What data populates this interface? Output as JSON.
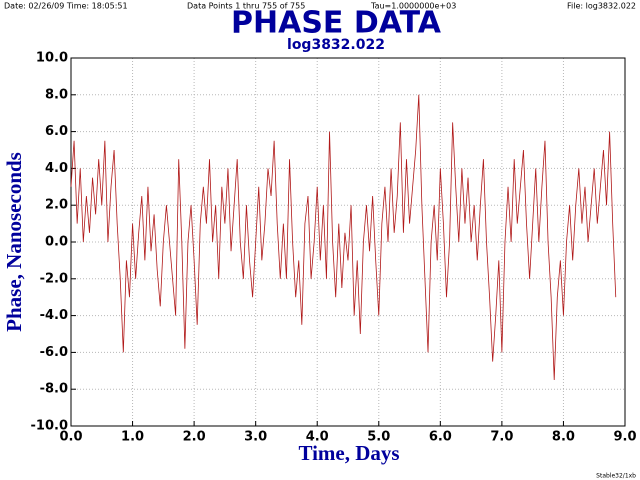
{
  "chart_data": {
    "type": "line",
    "header_date": "Date: 02/26/09  Time: 18:05:51",
    "header_points": "Data Points 1 thru 755 of 755",
    "header_tau": "Tau=1.0000000e+03",
    "header_file": "File: log3832.022",
    "title": "PHASE DATA",
    "subtitle": "log3832.022",
    "x_label": "Time,  Days",
    "y_label": "Phase,  Nanoseconds",
    "footer": "Stable32/1xb",
    "grid": true,
    "xlim": [
      0,
      9
    ],
    "ylim": [
      -10,
      10
    ],
    "xticks": [
      {
        "value": 0,
        "label": "0.0"
      },
      {
        "value": 1,
        "label": "1.0"
      },
      {
        "value": 2,
        "label": "2.0"
      },
      {
        "value": 3,
        "label": "3.0"
      },
      {
        "value": 4,
        "label": "4.0"
      },
      {
        "value": 5,
        "label": "5.0"
      },
      {
        "value": 6,
        "label": "6.0"
      },
      {
        "value": 7,
        "label": "7.0"
      },
      {
        "value": 8,
        "label": "8.0"
      },
      {
        "value": 9,
        "label": "9.0"
      }
    ],
    "yticks": [
      {
        "value": 10,
        "label": "10.0"
      },
      {
        "value": 8,
        "label": "8.0"
      },
      {
        "value": 6,
        "label": "6.0"
      },
      {
        "value": 4,
        "label": "4.0"
      },
      {
        "value": 2,
        "label": "2.0"
      },
      {
        "value": 0,
        "label": "0.0"
      },
      {
        "value": -2,
        "label": "-2.0"
      },
      {
        "value": -4,
        "label": "-4.0"
      },
      {
        "value": -6,
        "label": "-6.0"
      },
      {
        "value": -8,
        "label": "-8.0"
      },
      {
        "value": -10,
        "label": "-10.0"
      }
    ],
    "series": [
      {
        "name": "log3832.022",
        "color": "#b01818",
        "x": [
          0,
          0.05,
          0.1,
          0.15,
          0.2,
          0.25,
          0.3,
          0.35,
          0.4,
          0.45,
          0.5,
          0.55,
          0.6,
          0.65,
          0.7,
          0.75,
          0.8,
          0.85,
          0.9,
          0.95,
          1,
          1.05,
          1.1,
          1.15,
          1.2,
          1.25,
          1.3,
          1.35,
          1.4,
          1.45,
          1.5,
          1.55,
          1.6,
          1.65,
          1.7,
          1.75,
          1.8,
          1.85,
          1.9,
          1.95,
          2,
          2.05,
          2.1,
          2.15,
          2.2,
          2.25,
          2.3,
          2.35,
          2.4,
          2.45,
          2.5,
          2.55,
          2.6,
          2.65,
          2.7,
          2.75,
          2.8,
          2.85,
          2.9,
          2.95,
          3,
          3.05,
          3.1,
          3.15,
          3.2,
          3.25,
          3.3,
          3.35,
          3.4,
          3.45,
          3.5,
          3.55,
          3.6,
          3.65,
          3.7,
          3.75,
          3.8,
          3.85,
          3.9,
          3.95,
          4,
          4.05,
          4.1,
          4.15,
          4.2,
          4.25,
          4.3,
          4.35,
          4.4,
          4.45,
          4.5,
          4.55,
          4.6,
          4.65,
          4.7,
          4.75,
          4.8,
          4.85,
          4.9,
          4.95,
          5,
          5.05,
          5.1,
          5.15,
          5.2,
          5.25,
          5.3,
          5.35,
          5.4,
          5.45,
          5.5,
          5.55,
          5.6,
          5.65,
          5.7,
          5.75,
          5.8,
          5.85,
          5.9,
          5.95,
          6,
          6.05,
          6.1,
          6.15,
          6.2,
          6.25,
          6.3,
          6.35,
          6.4,
          6.45,
          6.5,
          6.55,
          6.6,
          6.65,
          6.7,
          6.75,
          6.8,
          6.85,
          6.9,
          6.95,
          7,
          7.05,
          7.1,
          7.15,
          7.2,
          7.25,
          7.3,
          7.35,
          7.4,
          7.45,
          7.5,
          7.55,
          7.6,
          7.65,
          7.7,
          7.75,
          7.8,
          7.85,
          7.9,
          7.95,
          8,
          8.05,
          8.1,
          8.15,
          8.2,
          8.25,
          8.3,
          8.35,
          8.4,
          8.45,
          8.5,
          8.55,
          8.6,
          8.65,
          8.7,
          8.75,
          8.8,
          8.85
        ],
        "values": [
          3,
          5.5,
          1,
          4,
          0,
          2.5,
          0.5,
          3.5,
          1.5,
          4.5,
          2,
          5.5,
          0,
          3,
          5,
          1,
          -2,
          -6,
          -1,
          -3,
          1,
          -2,
          0.5,
          2.5,
          -1,
          3,
          -0.5,
          1.5,
          -1.5,
          -3.5,
          0,
          2,
          0,
          -2,
          -4,
          4.5,
          0,
          -5.8,
          0,
          2,
          -1,
          -4.5,
          1,
          3,
          1,
          4.5,
          0,
          2,
          -2,
          3,
          1,
          4,
          -0.5,
          2,
          4.5,
          0,
          -2,
          2,
          -1,
          -3,
          0,
          3,
          -1,
          1,
          4,
          2.5,
          5.5,
          1,
          -2,
          1,
          -2,
          4.5,
          0,
          -3,
          -1,
          -4.5,
          1,
          2.5,
          -2,
          0,
          3,
          -1,
          2,
          -2,
          6,
          0,
          -3,
          1,
          -2.5,
          0.5,
          -1,
          2,
          -4,
          -1,
          -5,
          0,
          2,
          -0.5,
          2.5,
          -1,
          -4,
          1,
          3,
          0,
          4,
          0.5,
          2.5,
          6.5,
          0.5,
          4.5,
          1,
          3,
          5,
          8,
          2,
          -2,
          -6,
          0,
          2,
          -1,
          4,
          1,
          -3,
          0,
          6.5,
          3,
          0,
          4,
          1,
          3.5,
          0,
          2,
          -1,
          2,
          4.5,
          0,
          -3,
          -6.5,
          -4,
          -1,
          -6,
          0,
          3,
          0,
          4.5,
          1,
          3,
          5,
          1,
          -2,
          1,
          4,
          0,
          3,
          5.5,
          0,
          -3,
          -7.5,
          -3,
          -1,
          -4,
          0,
          2,
          -1,
          2,
          4,
          1,
          3,
          0,
          2,
          4,
          1,
          3,
          5,
          2,
          6,
          1,
          -3
        ]
      }
    ]
  }
}
